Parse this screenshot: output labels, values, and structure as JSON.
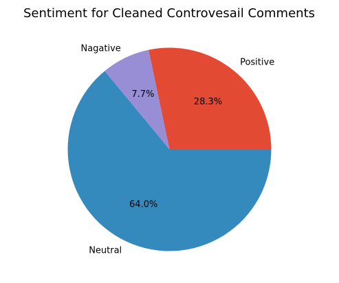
{
  "chart_data": {
    "type": "pie",
    "title": "Sentiment for Cleaned Controvesail Comments",
    "categories": [
      "Positive",
      "Nagative",
      "Neutral"
    ],
    "values": [
      28.3,
      7.7,
      64.0
    ],
    "value_labels": [
      "28.3%",
      "7.7%",
      "64.0%"
    ],
    "colors": [
      "#E24A33",
      "#988ED5",
      "#348ABD"
    ],
    "start_angle_deg": 0,
    "direction": "counterclockwise",
    "legend": "none"
  }
}
